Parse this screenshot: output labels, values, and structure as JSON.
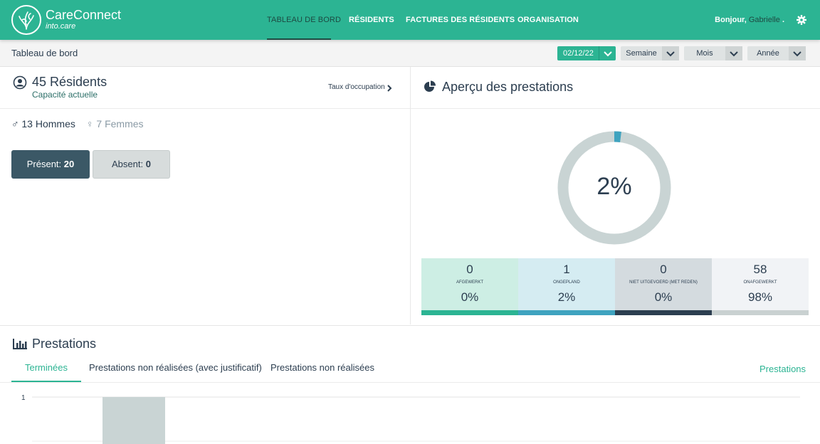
{
  "brand": {
    "name": "CareConnect",
    "sub": "into.care"
  },
  "nav": [
    {
      "label": "TABLEAU DE BORD",
      "active": true
    },
    {
      "label": "RÉSIDENTS"
    },
    {
      "label": "FACTURES DES RÉSIDENTS"
    },
    {
      "label": "ORGANISATION"
    }
  ],
  "header": {
    "greeting": "Bonjour,",
    "user": "Gabrielle",
    "suffix": "."
  },
  "subheader": {
    "title": "Tableau de bord",
    "date": "02/12/22",
    "ranges": [
      "Semaine",
      "Mois",
      "Année"
    ]
  },
  "residents": {
    "count": "45 Résidents",
    "caption": "Capacité actuelle",
    "occupancy_link": "Taux d'occupation",
    "men": "13 Hommes",
    "women": "7 Femmes",
    "present_label": "Présent:",
    "present_value": "20",
    "absent_label": "Absent:",
    "absent_value": "0"
  },
  "apercu": {
    "title": "Aperçu des prestations",
    "donut_percent": "2%",
    "donut_fraction": 0.02,
    "stats": [
      {
        "num": "0",
        "label": "AFGEWERKT",
        "pct": "0%",
        "bg": "#cdeee4",
        "bar": "#2cb493"
      },
      {
        "num": "1",
        "label": "ONGEPLAND",
        "pct": "2%",
        "bg": "#d5ecf2",
        "bar": "#3fa3bf"
      },
      {
        "num": "0",
        "label": "NIET UITGEVOERD (MET REDEN)",
        "pct": "0%",
        "bg": "#d4dbdf",
        "bar": "#2c3e50"
      },
      {
        "num": "58",
        "label": "ONAFGEWERKT",
        "pct": "98%",
        "bg": "#f1f3f6",
        "bar": "#c9d1d1"
      }
    ]
  },
  "prestations": {
    "title": "Prestations",
    "tabs": [
      "Terminées",
      "Prestations non réalisées (avec justificatif)",
      "Prestations non réalisées"
    ],
    "link": "Prestations"
  },
  "chart_data": {
    "type": "bar",
    "ytick_labels": [
      "1"
    ],
    "values": [
      1
    ],
    "ylim": [
      0,
      1
    ]
  },
  "colors": {
    "accent": "#2cb493",
    "dark": "#3b5866",
    "donut_track": "#c9d4d4",
    "donut_value": "#3fa3bf"
  }
}
